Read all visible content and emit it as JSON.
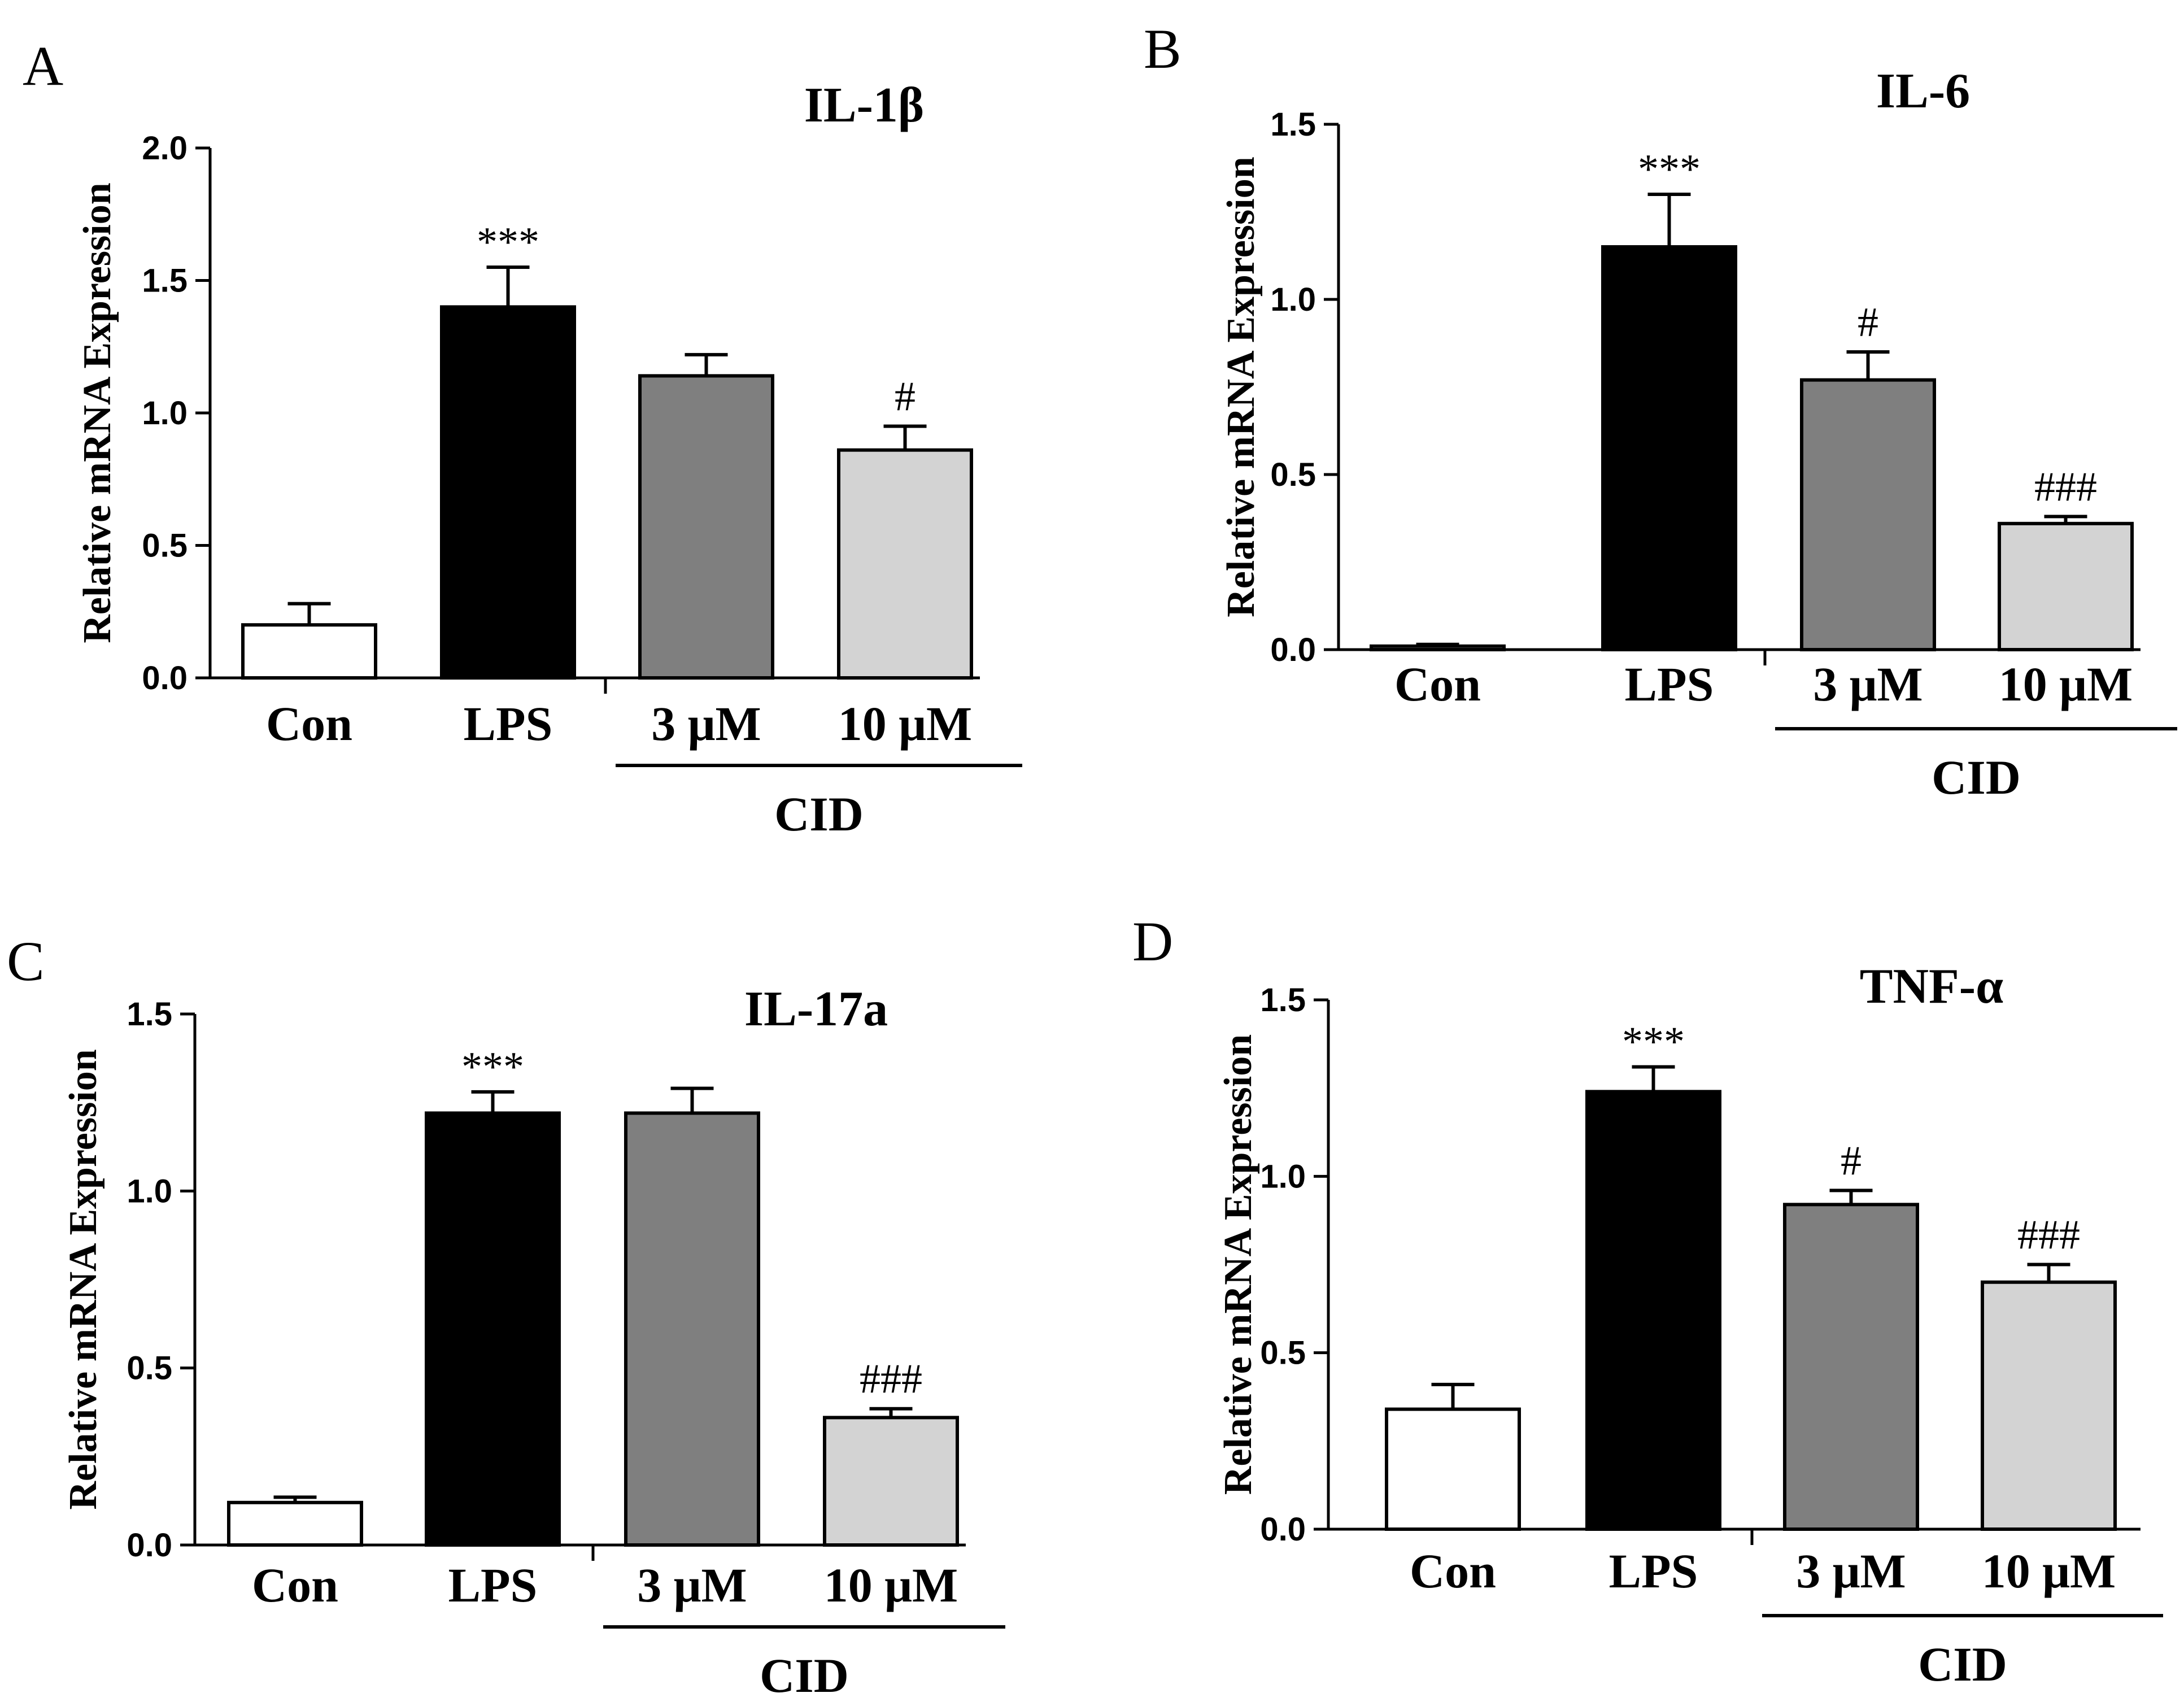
{
  "chart_data": [
    {
      "panel": "A",
      "type": "bar",
      "title": "IL-1β",
      "ylabel": "Relative mRNA Expression",
      "xlabel": "",
      "ylim": [
        0,
        2.0
      ],
      "yticks": [
        "0.0",
        "0.5",
        "1.0",
        "1.5",
        "2.0"
      ],
      "categories": [
        "Con",
        "LPS",
        "3 μM",
        "10 μM"
      ],
      "values": [
        0.2,
        1.4,
        1.14,
        0.86
      ],
      "errors": [
        0.08,
        0.15,
        0.08,
        0.09
      ],
      "significance": [
        "",
        "***",
        "",
        "#"
      ],
      "bar_colors": [
        "#ffffff",
        "#000000",
        "#7f7f7f",
        "#d3d3d3"
      ],
      "group_label": "CID"
    },
    {
      "panel": "B",
      "type": "bar",
      "title": "IL-6",
      "ylabel": "Relative mRNA Expression",
      "xlabel": "",
      "ylim": [
        0,
        1.5
      ],
      "yticks": [
        "0.0",
        "0.5",
        "1.0",
        "1.5"
      ],
      "categories": [
        "Con",
        "LPS",
        "3 μM",
        "10 μM"
      ],
      "values": [
        0.01,
        1.15,
        0.77,
        0.36
      ],
      "errors": [
        0.005,
        0.15,
        0.08,
        0.02
      ],
      "significance": [
        "",
        "***",
        "#",
        "###"
      ],
      "bar_colors": [
        "#ffffff",
        "#000000",
        "#7f7f7f",
        "#d3d3d3"
      ],
      "group_label": "CID"
    },
    {
      "panel": "C",
      "type": "bar",
      "title": "IL-17a",
      "ylabel": "Relative mRNA Expression",
      "xlabel": "",
      "ylim": [
        0,
        1.5
      ],
      "yticks": [
        "0.0",
        "0.5",
        "1.0",
        "1.5"
      ],
      "categories": [
        "Con",
        "LPS",
        "3 μM",
        "10 μM"
      ],
      "values": [
        0.12,
        1.22,
        1.22,
        0.36
      ],
      "errors": [
        0.015,
        0.06,
        0.07,
        0.025
      ],
      "significance": [
        "",
        "***",
        "",
        "###"
      ],
      "bar_colors": [
        "#ffffff",
        "#000000",
        "#7f7f7f",
        "#d3d3d3"
      ],
      "group_label": "CID"
    },
    {
      "panel": "D",
      "type": "bar",
      "title": "TNF-α",
      "ylabel": "Relative mRNA Expression",
      "xlabel": "",
      "ylim": [
        0,
        1.5
      ],
      "yticks": [
        "0.0",
        "0.5",
        "1.0",
        "1.5"
      ],
      "categories": [
        "Con",
        "LPS",
        "3 μM",
        "10 μM"
      ],
      "values": [
        0.34,
        1.24,
        0.92,
        0.7
      ],
      "errors": [
        0.07,
        0.07,
        0.04,
        0.05
      ],
      "significance": [
        "",
        "***",
        "#",
        "###"
      ],
      "bar_colors": [
        "#ffffff",
        "#000000",
        "#7f7f7f",
        "#d3d3d3"
      ],
      "group_label": "CID"
    }
  ]
}
